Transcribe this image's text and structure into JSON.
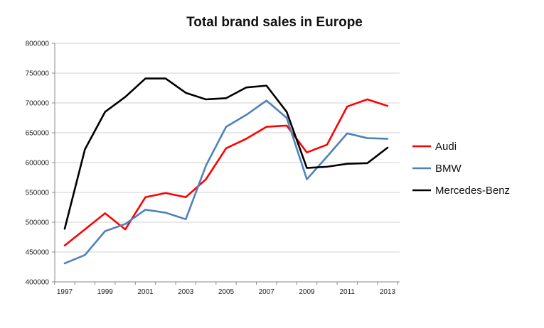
{
  "chart_data": {
    "type": "line",
    "title": "Total brand sales in Europe",
    "xlabel": "",
    "ylabel": "",
    "x": [
      1997,
      1998,
      1999,
      2000,
      2001,
      2002,
      2003,
      2004,
      2005,
      2006,
      2007,
      2008,
      2009,
      2010,
      2011,
      2012,
      2013
    ],
    "x_tick_labels": [
      "1997",
      "1999",
      "2001",
      "2003",
      "2005",
      "2007",
      "2009",
      "2011",
      "2013"
    ],
    "x_tick_values": [
      1997,
      1999,
      2001,
      2003,
      2005,
      2007,
      2009,
      2011,
      2013
    ],
    "y_tick_labels": [
      "400000",
      "450000",
      "500000",
      "550000",
      "600000",
      "650000",
      "700000",
      "750000",
      "800000"
    ],
    "y_tick_values": [
      400000,
      450000,
      500000,
      550000,
      600000,
      650000,
      700000,
      750000,
      800000
    ],
    "xlim": [
      1997,
      2013
    ],
    "ylim": [
      400000,
      800000
    ],
    "grid": "horizontal",
    "legend_position": "right",
    "series": [
      {
        "name": "Audi",
        "color": "#ff0000",
        "values": [
          461000,
          488000,
          515000,
          488000,
          542000,
          549000,
          542000,
          572000,
          624000,
          640000,
          660000,
          662000,
          617000,
          630000,
          694000,
          706000,
          695000
        ]
      },
      {
        "name": "BMW",
        "color": "#4f81bd",
        "values": [
          431000,
          445000,
          485000,
          497000,
          521000,
          516000,
          505000,
          595000,
          660000,
          680000,
          704000,
          675000,
          572000,
          610000,
          649000,
          641000,
          640000
        ]
      },
      {
        "name": "Mercedes-Benz",
        "color": "#000000",
        "values": [
          489000,
          622000,
          685000,
          710000,
          741000,
          741000,
          717000,
          706000,
          708000,
          726000,
          729000,
          685000,
          591000,
          593000,
          598000,
          599000,
          625000
        ]
      }
    ]
  }
}
